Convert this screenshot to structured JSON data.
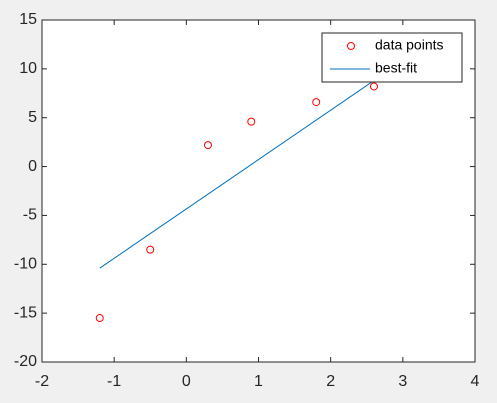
{
  "chart_data": {
    "type": "scatter",
    "series": [
      {
        "name": "data points",
        "color": "#ff0000",
        "marker": "circle",
        "x": [
          -1.2,
          -0.5,
          0.3,
          0.9,
          1.8,
          2.6
        ],
        "values": [
          -15.5,
          -8.5,
          2.2,
          4.6,
          6.6,
          8.2
        ]
      },
      {
        "name": "best-fit",
        "color": "#0072bd",
        "marker": "line",
        "x": [
          -1.2,
          2.6
        ],
        "values": [
          -10.4,
          8.8
        ]
      }
    ],
    "xlim": [
      -2,
      4
    ],
    "xticks": [
      -2,
      -1,
      0,
      1,
      2,
      3,
      4
    ],
    "ylim": [
      -20,
      15
    ],
    "yticks": [
      -20,
      -15,
      -10,
      -5,
      0,
      5,
      10,
      15
    ],
    "legend": "northeast"
  }
}
